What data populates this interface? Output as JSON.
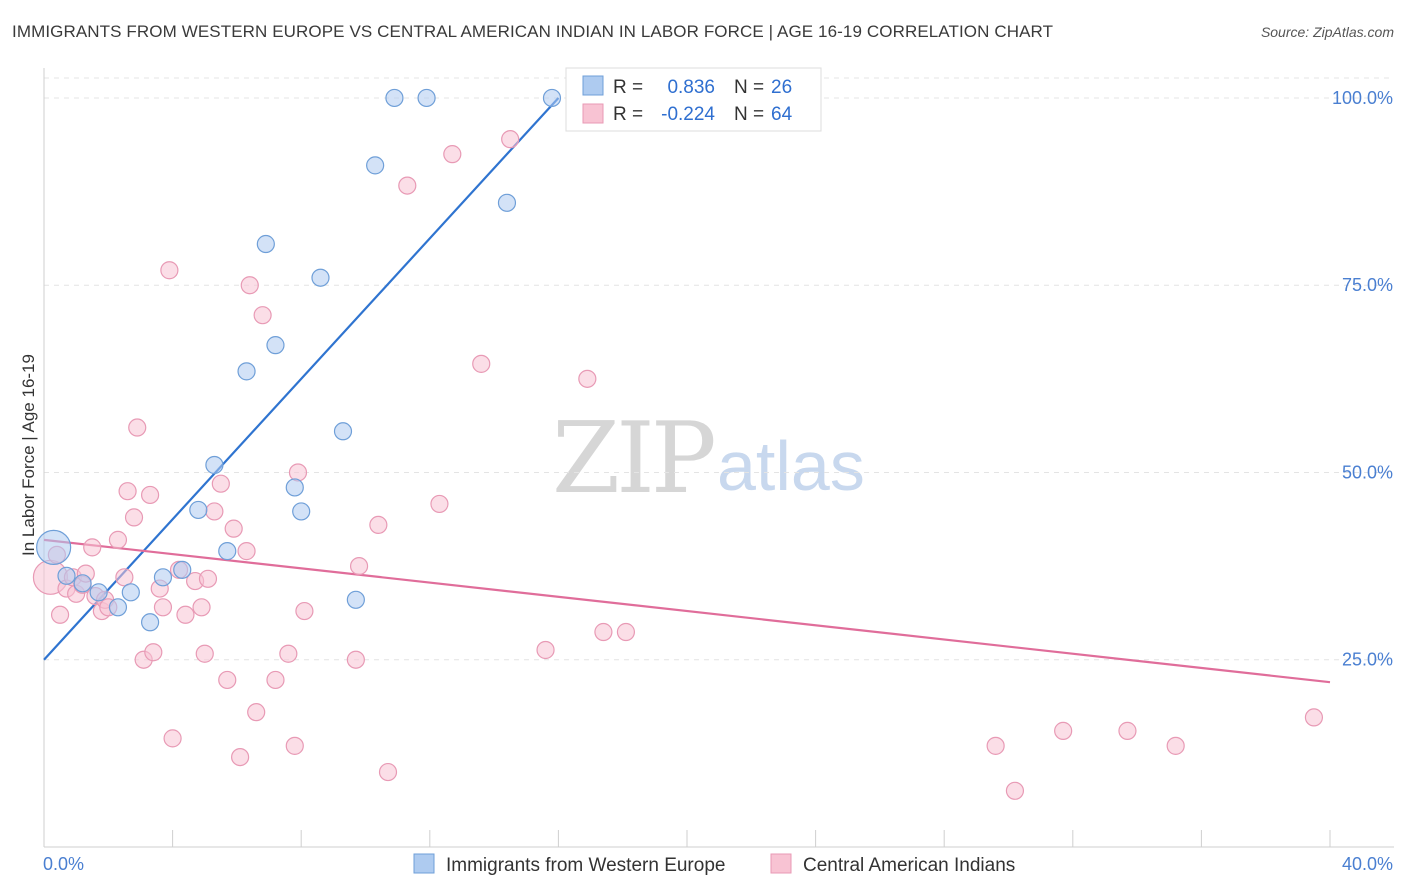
{
  "title": "IMMIGRANTS FROM WESTERN EUROPE VS CENTRAL AMERICAN INDIAN IN LABOR FORCE | AGE 16-19 CORRELATION CHART",
  "source": "Source: ZipAtlas.com",
  "watermark": {
    "part1": "ZIP",
    "part2": "atlas"
  },
  "legend_stats": [
    {
      "r_label": "R =",
      "r_value": "0.836",
      "n_label": "N =",
      "n_value": "26",
      "color": "#aecbf0",
      "stroke": "#6f9fd8"
    },
    {
      "r_label": "R =",
      "r_value": "-0.224",
      "n_label": "N =",
      "n_value": "64",
      "color": "#f8c3d3",
      "stroke": "#e89ab5"
    }
  ],
  "chart_data": {
    "type": "scatter",
    "ylabel": "In Labor Force | Age 16-19",
    "xlim": [
      0,
      40
    ],
    "ylim": [
      2,
      104
    ],
    "x_tick_labels": {
      "min": "0.0%",
      "max": "40.0%"
    },
    "y_ticks": [
      {
        "value": 25,
        "label": "25.0%"
      },
      {
        "value": 50,
        "label": "50.0%"
      },
      {
        "value": 75,
        "label": "75.0%"
      },
      {
        "value": 100,
        "label": "100.0%"
      }
    ],
    "grid": true,
    "legend_bottom": [
      "Immigrants from Western Europe",
      "Central American Indians"
    ],
    "series": [
      {
        "name": "Immigrants from Western Europe",
        "color": "#6f9fd8",
        "fill": "#aecbf0",
        "trend": {
          "x1": 0.0,
          "y1": 25.0,
          "x2": 16.0,
          "y2": 100.0,
          "color": "#2f74d0"
        },
        "points": [
          {
            "x": 0.3,
            "y": 40.0,
            "big": true
          },
          {
            "x": 0.7,
            "y": 36.2
          },
          {
            "x": 1.2,
            "y": 35.2
          },
          {
            "x": 1.7,
            "y": 34.0
          },
          {
            "x": 2.3,
            "y": 32.0
          },
          {
            "x": 2.7,
            "y": 34.0
          },
          {
            "x": 3.3,
            "y": 30.0
          },
          {
            "x": 3.7,
            "y": 36.0
          },
          {
            "x": 4.3,
            "y": 37.0
          },
          {
            "x": 4.8,
            "y": 45.0
          },
          {
            "x": 5.3,
            "y": 51.0
          },
          {
            "x": 5.7,
            "y": 39.5
          },
          {
            "x": 6.3,
            "y": 63.5
          },
          {
            "x": 6.9,
            "y": 80.5
          },
          {
            "x": 7.2,
            "y": 67.0
          },
          {
            "x": 7.8,
            "y": 48.0
          },
          {
            "x": 8.0,
            "y": 44.8
          },
          {
            "x": 8.6,
            "y": 76.0
          },
          {
            "x": 9.3,
            "y": 55.5
          },
          {
            "x": 9.7,
            "y": 33.0
          },
          {
            "x": 10.3,
            "y": 91.0
          },
          {
            "x": 10.9,
            "y": 100.0
          },
          {
            "x": 11.9,
            "y": 100.0
          },
          {
            "x": 14.4,
            "y": 86.0
          },
          {
            "x": 15.8,
            "y": 100.0
          },
          {
            "x": 16.6,
            "y": 100.0
          }
        ]
      },
      {
        "name": "Central American Indians",
        "color": "#e89ab5",
        "fill": "#f8c3d3",
        "trend": {
          "x1": 0.0,
          "y1": 41.0,
          "x2": 40.0,
          "y2": 22.0,
          "color": "#e06d9a"
        },
        "points": [
          {
            "x": 0.2,
            "y": 36.0,
            "big": true
          },
          {
            "x": 0.4,
            "y": 39.0
          },
          {
            "x": 0.5,
            "y": 31.0
          },
          {
            "x": 0.7,
            "y": 34.5
          },
          {
            "x": 0.9,
            "y": 36.0
          },
          {
            "x": 1.0,
            "y": 33.8
          },
          {
            "x": 1.2,
            "y": 35.0
          },
          {
            "x": 1.3,
            "y": 36.5
          },
          {
            "x": 1.5,
            "y": 40.0
          },
          {
            "x": 1.6,
            "y": 33.5
          },
          {
            "x": 1.8,
            "y": 31.5
          },
          {
            "x": 1.9,
            "y": 33.0
          },
          {
            "x": 2.0,
            "y": 32.0
          },
          {
            "x": 2.3,
            "y": 41.0
          },
          {
            "x": 2.5,
            "y": 36.0
          },
          {
            "x": 2.6,
            "y": 47.5
          },
          {
            "x": 2.8,
            "y": 44.0
          },
          {
            "x": 2.9,
            "y": 56.0
          },
          {
            "x": 3.1,
            "y": 25.0
          },
          {
            "x": 3.3,
            "y": 47.0
          },
          {
            "x": 3.4,
            "y": 26.0
          },
          {
            "x": 3.6,
            "y": 34.5
          },
          {
            "x": 3.7,
            "y": 32.0
          },
          {
            "x": 3.9,
            "y": 77.0
          },
          {
            "x": 4.0,
            "y": 14.5
          },
          {
            "x": 4.2,
            "y": 37.0
          },
          {
            "x": 4.4,
            "y": 31.0
          },
          {
            "x": 4.7,
            "y": 35.5
          },
          {
            "x": 4.9,
            "y": 32.0
          },
          {
            "x": 5.0,
            "y": 25.8
          },
          {
            "x": 5.1,
            "y": 35.8
          },
          {
            "x": 5.3,
            "y": 44.8
          },
          {
            "x": 5.5,
            "y": 48.5
          },
          {
            "x": 5.7,
            "y": 22.3
          },
          {
            "x": 5.9,
            "y": 42.5
          },
          {
            "x": 6.1,
            "y": 12.0
          },
          {
            "x": 6.3,
            "y": 39.5
          },
          {
            "x": 6.4,
            "y": 75.0
          },
          {
            "x": 6.6,
            "y": 18.0
          },
          {
            "x": 6.8,
            "y": 71.0
          },
          {
            "x": 7.2,
            "y": 22.3
          },
          {
            "x": 7.6,
            "y": 25.8
          },
          {
            "x": 7.8,
            "y": 13.5
          },
          {
            "x": 7.9,
            "y": 50.0
          },
          {
            "x": 8.1,
            "y": 31.5
          },
          {
            "x": 9.7,
            "y": 25.0
          },
          {
            "x": 9.8,
            "y": 37.5
          },
          {
            "x": 10.4,
            "y": 43.0
          },
          {
            "x": 10.7,
            "y": 10.0
          },
          {
            "x": 11.3,
            "y": 88.3
          },
          {
            "x": 12.3,
            "y": 45.8
          },
          {
            "x": 12.7,
            "y": 92.5
          },
          {
            "x": 13.6,
            "y": 64.5
          },
          {
            "x": 14.5,
            "y": 94.5
          },
          {
            "x": 15.6,
            "y": 26.3
          },
          {
            "x": 16.9,
            "y": 62.5
          },
          {
            "x": 17.4,
            "y": 28.7
          },
          {
            "x": 18.1,
            "y": 28.7
          },
          {
            "x": 29.6,
            "y": 13.5
          },
          {
            "x": 30.2,
            "y": 7.5
          },
          {
            "x": 31.7,
            "y": 15.5
          },
          {
            "x": 33.7,
            "y": 15.5
          },
          {
            "x": 35.2,
            "y": 13.5
          },
          {
            "x": 39.5,
            "y": 17.3
          }
        ]
      }
    ]
  }
}
